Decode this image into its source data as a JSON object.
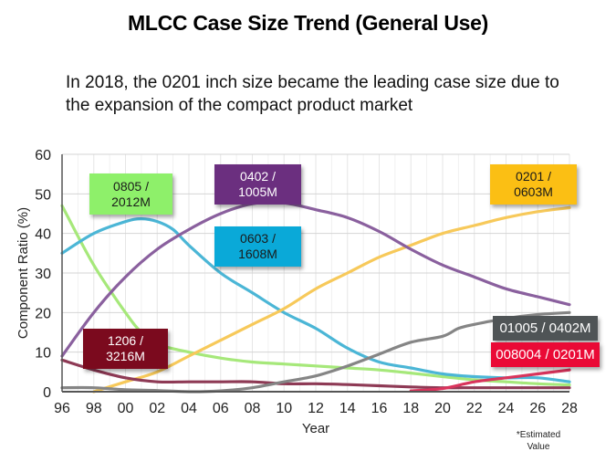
{
  "header": {
    "title": "MLCC Case Size Trend (General Use)",
    "subtitle": "In 2018, the 0201 inch size became the leading case size due to the expansion of the compact product market"
  },
  "footnote": "*Estimated Value",
  "chart_data": {
    "type": "line",
    "title": "MLCC Case Size Trend (General Use)",
    "xlabel": "Year",
    "ylabel": "Component Ratio (%)",
    "xlim": [
      1996,
      2028
    ],
    "ylim": [
      0,
      60
    ],
    "yticks": [
      0,
      10,
      20,
      30,
      40,
      50,
      60
    ],
    "xticks": [
      1996,
      1998,
      2000,
      2002,
      2004,
      2006,
      2008,
      2010,
      2012,
      2014,
      2016,
      2018,
      2020,
      2022,
      2024,
      2026,
      2028
    ],
    "xtick_labels": [
      "96",
      "98",
      "00",
      "02",
      "04",
      "06",
      "08",
      "10",
      "12",
      "14",
      "16",
      "18",
      "20",
      "22",
      "24",
      "26",
      "28"
    ],
    "grid": true,
    "legend": "inline labels",
    "series": [
      {
        "name": "0805 / 2012M",
        "color": "#a6e87a",
        "label_bg": "#8ef06a",
        "label_fg": "#1a1a1a",
        "x": [
          1996,
          1998,
          2000,
          2001,
          2002,
          2004,
          2006,
          2008,
          2010,
          2012,
          2014,
          2016,
          2018,
          2020,
          2022,
          2024,
          2026,
          2028
        ],
        "y": [
          47,
          32,
          20,
          15,
          12,
          10,
          8.5,
          7.5,
          7,
          6.5,
          6,
          5.5,
          4.7,
          3.8,
          3,
          2.5,
          2,
          1.7
        ]
      },
      {
        "name": "0603 / 1608M",
        "color": "#4bb6d6",
        "label_bg": "#0aa9d8",
        "label_fg": "#1a1a1a",
        "x": [
          1996,
          1998,
          2000,
          2001,
          2002,
          2003,
          2004,
          2006,
          2008,
          2010,
          2012,
          2014,
          2016,
          2018,
          2020,
          2022,
          2024,
          2026,
          2028
        ],
        "y": [
          35,
          40,
          43,
          43.7,
          43,
          41,
          37,
          30,
          25,
          20,
          16,
          11,
          7.5,
          6,
          4.5,
          3.8,
          3.5,
          3.5,
          2.5
        ]
      },
      {
        "name": "0402 / 1005M",
        "color": "#8a609e",
        "label_bg": "#6b2f7f",
        "label_fg": "#ffffff",
        "x": [
          1996,
          1998,
          2000,
          2002,
          2004,
          2006,
          2008,
          2010,
          2012,
          2014,
          2016,
          2018,
          2020,
          2022,
          2024,
          2026,
          2028
        ],
        "y": [
          9,
          20,
          29,
          36,
          41,
          45,
          47.5,
          47.7,
          46,
          44,
          40.5,
          36,
          32,
          29,
          26,
          24,
          22
        ]
      },
      {
        "name": "0201 / 0603M",
        "color": "#f7c95a",
        "label_bg": "#fbbf14",
        "label_fg": "#1a1a1a",
        "x": [
          1998,
          2000,
          2002,
          2004,
          2006,
          2008,
          2010,
          2012,
          2014,
          2016,
          2018,
          2020,
          2022,
          2024,
          2026,
          2028
        ],
        "y": [
          0,
          2.5,
          5,
          9,
          13,
          17,
          21,
          26,
          30,
          34,
          37,
          40,
          42,
          44,
          45.5,
          46.5
        ]
      },
      {
        "name": "1206 / 3216M",
        "color": "#8e3a55",
        "label_bg": "#7b0a1e",
        "label_fg": "#ffffff",
        "x": [
          1996,
          1998,
          2000,
          2002,
          2004,
          2006,
          2008,
          2010,
          2012,
          2014,
          2016,
          2018,
          2020,
          2022,
          2024,
          2026,
          2028
        ],
        "y": [
          8,
          5.5,
          3.5,
          2.5,
          2.5,
          2.5,
          2.5,
          2,
          2,
          1.8,
          1.5,
          1.2,
          1,
          1,
          1,
          1,
          1
        ]
      },
      {
        "name": "01005 / 0402M",
        "color": "#858585",
        "label_bg": "#4f5456",
        "label_fg": "#ffffff",
        "x": [
          1996,
          1998,
          2000,
          2002,
          2004,
          2006,
          2008,
          2010,
          2012,
          2014,
          2016,
          2018,
          2020,
          2021,
          2022,
          2024,
          2026,
          2028
        ],
        "y": [
          1,
          1,
          0.5,
          0.3,
          0,
          0.2,
          1,
          2.5,
          4,
          6.5,
          9.5,
          12.5,
          14,
          16,
          17,
          18.5,
          19.5,
          20
        ]
      },
      {
        "name": "008004 / 0201M",
        "color": "#d9345c",
        "label_bg": "#ea0a36",
        "label_fg": "#ffffff",
        "x": [
          2018,
          2020,
          2022,
          2024,
          2026,
          2028
        ],
        "y": [
          0.2,
          0.8,
          2.5,
          3.5,
          4.5,
          5.5
        ]
      }
    ],
    "labels": [
      {
        "series": 0,
        "line1": "0805 /",
        "line2": "2012M"
      },
      {
        "series": 2,
        "line1": "0402 /",
        "line2": "1005M"
      },
      {
        "series": 1,
        "line1": "0603 /",
        "line2": "1608M"
      },
      {
        "series": 3,
        "line1": "0201 /",
        "line2": "0603M"
      },
      {
        "series": 4,
        "line1": "1206 /",
        "line2": "3216M"
      },
      {
        "series": 5,
        "line1": "01005 / 0402M",
        "line2": ""
      },
      {
        "series": 6,
        "line1": "008004 / 0201M",
        "line2": ""
      }
    ]
  }
}
